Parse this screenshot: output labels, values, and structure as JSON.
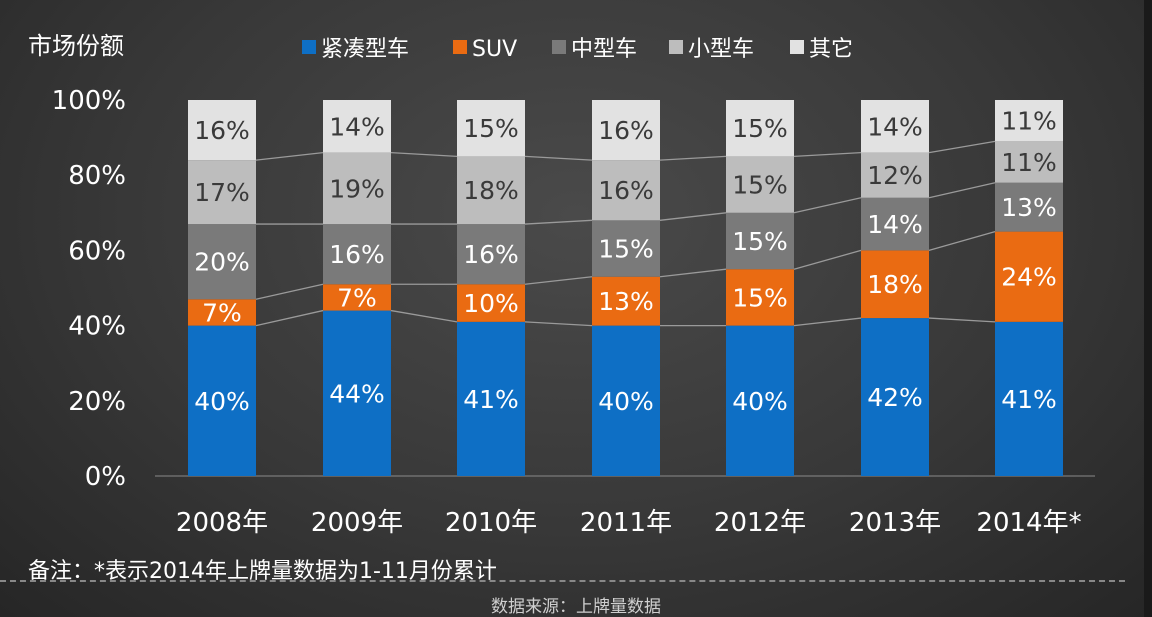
{
  "chart_data": {
    "type": "bar",
    "stacked": true,
    "ylabel": "市场份额",
    "yticks": [
      "0%",
      "20%",
      "40%",
      "60%",
      "80%",
      "100%"
    ],
    "ylim": [
      0,
      100
    ],
    "categories": [
      "2008年",
      "2009年",
      "2010年",
      "2011年",
      "2012年",
      "2013年",
      "2014年*"
    ],
    "series": [
      {
        "name": "紧凑型车",
        "color": "#0e6fc5",
        "values": [
          40,
          44,
          41,
          40,
          40,
          42,
          41
        ],
        "labels": [
          "40%",
          "44%",
          "41%",
          "40%",
          "40%",
          "42%",
          "41%"
        ]
      },
      {
        "name": "SUV",
        "color": "#ea6b12",
        "values": [
          7,
          7,
          10,
          13,
          15,
          18,
          24
        ],
        "labels": [
          "7%",
          "7%",
          "10%",
          "13%",
          "15%",
          "18%",
          "24%"
        ]
      },
      {
        "name": "中型车",
        "color": "#7a7a7a",
        "values": [
          20,
          16,
          16,
          15,
          15,
          14,
          13
        ],
        "labels": [
          "20%",
          "16%",
          "16%",
          "15%",
          "15%",
          "14%",
          "13%"
        ]
      },
      {
        "name": "小型车",
        "color": "#bdbdbd",
        "values": [
          17,
          19,
          18,
          16,
          15,
          12,
          11
        ],
        "labels": [
          "17%",
          "19%",
          "18%",
          "16%",
          "15%",
          "12%",
          "11%"
        ]
      },
      {
        "name": "其它",
        "color": "#e2e2e2",
        "values": [
          16,
          14,
          15,
          16,
          15,
          14,
          11
        ],
        "labels": [
          "16%",
          "14%",
          "15%",
          "16%",
          "15%",
          "14%",
          "11%"
        ]
      }
    ],
    "legend_position": "top",
    "series_lines": true
  },
  "footnote": "备注：*表示2014年上牌量数据为1-11月份累计",
  "source": "数据来源：上牌量数据"
}
